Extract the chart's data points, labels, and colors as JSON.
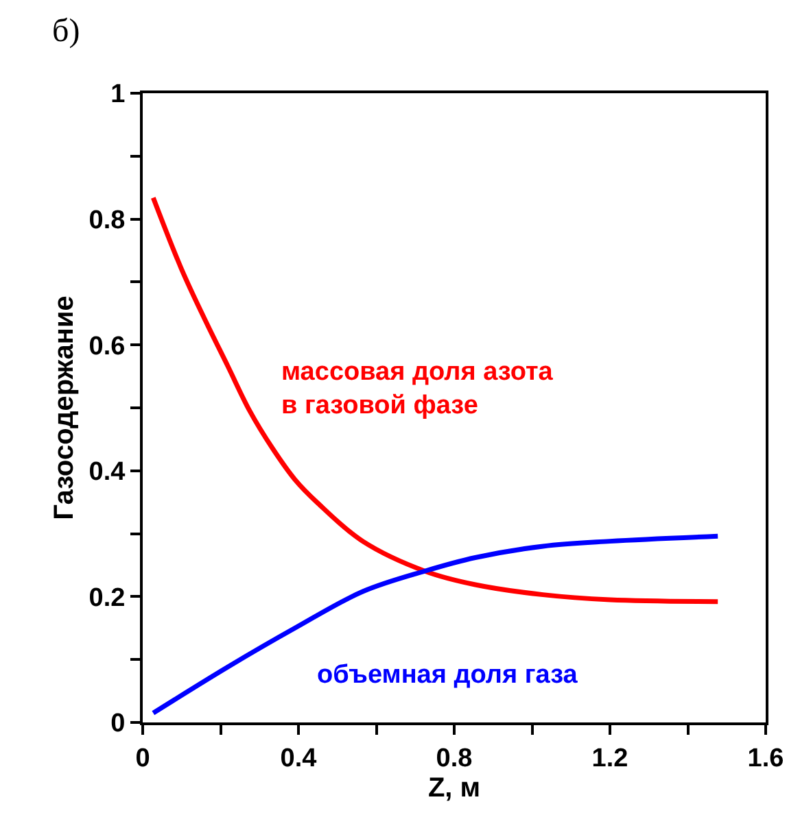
{
  "chart_data": {
    "type": "line",
    "xlabel": "Z, м",
    "ylabel": "Газосодержание",
    "annotations": [
      "б)"
    ],
    "xlim": [
      0,
      1.6
    ],
    "ylim": [
      0,
      1
    ],
    "xticks": [
      0,
      {
        "value": 0.2,
        "label": null
      },
      0.4,
      {
        "value": 0.6,
        "label": null
      },
      0.8,
      {
        "value": 1.0,
        "label": null
      },
      1.2,
      {
        "value": 1.4,
        "label": null
      },
      1.6
    ],
    "yticks": [
      0,
      {
        "value": 0.1,
        "label": null
      },
      0.2,
      {
        "value": 0.3,
        "label": null
      },
      0.4,
      {
        "value": 0.5,
        "label": null
      },
      0.6,
      {
        "value": 0.7,
        "label": null
      },
      0.8,
      {
        "value": 0.9,
        "label": null
      },
      1
    ],
    "legend": false,
    "marker": "none",
    "line_style": "solid",
    "series": [
      {
        "name": "массовая доля азота\nв газовой фазе",
        "color": "#ff0000",
        "x": [
          0.027,
          0.1,
          0.16,
          0.218,
          0.275,
          0.333,
          0.391,
          0.449,
          0.565,
          0.727,
          0.854,
          1.028,
          1.2,
          1.477
        ],
        "values": [
          0.834,
          0.72,
          0.64,
          0.567,
          0.495,
          0.436,
          0.386,
          0.349,
          0.288,
          0.24,
          0.219,
          0.203,
          0.195,
          0.192
        ]
      },
      {
        "name": "объемная доля газа",
        "color": "#0000ff",
        "x": [
          0.027,
          0.218,
          0.391,
          0.565,
          0.727,
          0.854,
          1.028,
          1.2,
          1.477
        ],
        "values": [
          0.015,
          0.088,
          0.15,
          0.208,
          0.241,
          0.262,
          0.28,
          0.288,
          0.296
        ]
      }
    ]
  }
}
